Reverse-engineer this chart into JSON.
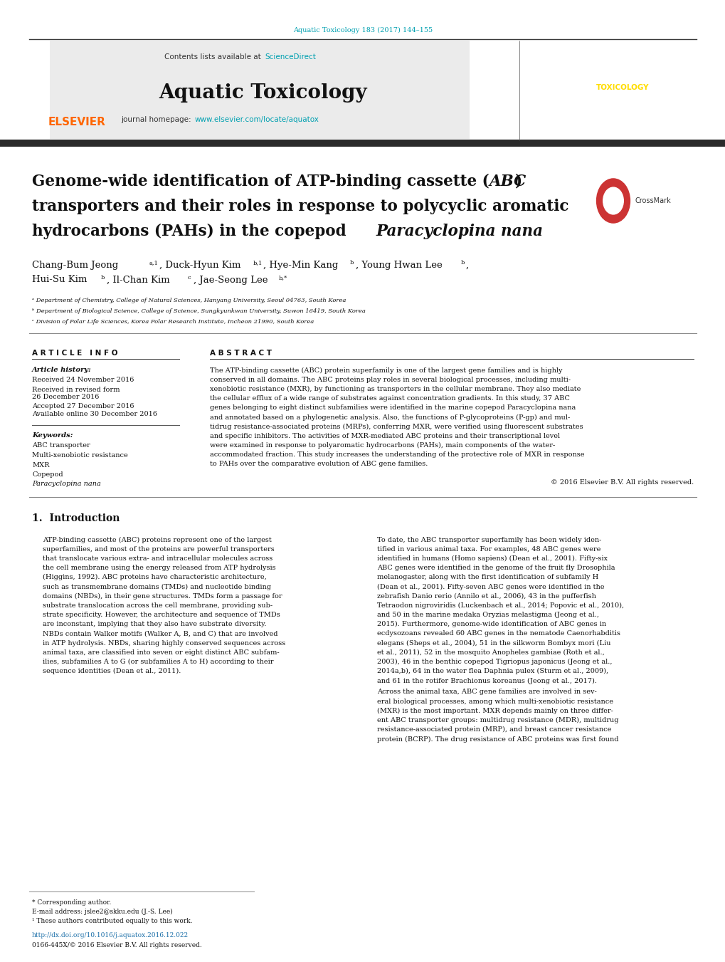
{
  "page_width": 10.2,
  "page_height": 13.51,
  "bg_color": "#ffffff",
  "top_citation": "Aquatic Toxicology 183 (2017) 144–155",
  "citation_color": "#00a0b0",
  "journal_name": "Aquatic Toxicology",
  "contents_text": "Contents lists available at ",
  "science_direct": "ScienceDirect",
  "journal_homepage_text": "journal homepage: ",
  "journal_url": "www.elsevier.com/locate/aquatox",
  "header_bg": "#e8e8e8",
  "elsevier_color": "#ff6600",
  "article_info_header": "A R T I C L E   I N F O",
  "abstract_header": "A B S T R A C T",
  "article_history_label": "Article history:",
  "received1": "Received 24 November 2016",
  "received2": "Received in revised form",
  "received2b": "26 December 2016",
  "accepted": "Accepted 27 December 2016",
  "available": "Available online 30 December 2016",
  "keywords_label": "Keywords:",
  "keywords": [
    "ABC transporter",
    "Multi-xenobiotic resistance",
    "MXR",
    "Copepod",
    "Paracyclopina nana"
  ],
  "copyright": "© 2016 Elsevier B.V. All rights reserved.",
  "intro_header": "1.  Introduction",
  "affil_a": "ᵃ Department of Chemistry, College of Natural Sciences, Hanyang University, Seoul 04763, South Korea",
  "affil_b": "ᵇ Department of Biological Science, College of Science, Sungkyunkwan University, Suwon 16419, South Korea",
  "affil_c": "ᶜ Division of Polar Life Sciences, Korea Polar Research Institute, Incheon 21990, South Korea",
  "footnote_corresponding": "* Corresponding author.",
  "footnote_email": "E-mail address: jslee2@skku.edu (J.-S. Lee)",
  "footnote_equal": "¹ These authors contributed equally to this work.",
  "doi": "http://dx.doi.org/10.1016/j.aquatox.2016.12.022",
  "issn": "0166-445X/© 2016 Elsevier B.V. All rights reserved.",
  "link_color": "#1a6ea8",
  "dark_line_color": "#3a3a3a",
  "separator_color": "#aaaaaa",
  "abstract_lines": [
    "The ATP-binding cassette (ABC) protein superfamily is one of the largest gene families and is highly",
    "conserved in all domains. The ABC proteins play roles in several biological processes, including multi-",
    "xenobiotic resistance (MXR), by functioning as transporters in the cellular membrane. They also mediate",
    "the cellular efflux of a wide range of substrates against concentration gradients. In this study, 37 ABC",
    "genes belonging to eight distinct subfamilies were identified in the marine copepod Paracyclopina nana",
    "and annotated based on a phylogenetic analysis. Also, the functions of P-glycoproteins (P-gp) and mul-",
    "tidrug resistance-associated proteins (MRPs), conferring MXR, were verified using fluorescent substrates",
    "and specific inhibitors. The activities of MXR-mediated ABC proteins and their transcriptional level",
    "were examined in response to polyaromatic hydrocarbons (PAHs), main components of the water-",
    "accommodated fraction. This study increases the understanding of the protective role of MXR in response",
    "to PAHs over the comparative evolution of ABC gene families."
  ],
  "intro_left_lines": [
    "ATP-binding cassette (ABC) proteins represent one of the largest",
    "superfamilies, and most of the proteins are powerful transporters",
    "that translocate various extra- and intracellular molecules across",
    "the cell membrane using the energy released from ATP hydrolysis",
    "(Higgins, 1992). ABC proteins have characteristic architecture,",
    "such as transmembrane domains (TMDs) and nucleotide binding",
    "domains (NBDs), in their gene structures. TMDs form a passage for",
    "substrate translocation across the cell membrane, providing sub-",
    "strate specificity. However, the architecture and sequence of TMDs",
    "are inconstant, implying that they also have substrate diversity.",
    "NBDs contain Walker motifs (Walker A, B, and C) that are involved",
    "in ATP hydrolysis. NBDs, sharing highly conserved sequences across",
    "animal taxa, are classified into seven or eight distinct ABC subfam-",
    "ilies, subfamilies A to G (or subfamilies A to H) according to their",
    "sequence identities (Dean et al., 2011)."
  ],
  "intro_right_lines": [
    "To date, the ABC transporter superfamily has been widely iden-",
    "tified in various animal taxa. For examples, 48 ABC genes were",
    "identified in humans (Homo sapiens) (Dean et al., 2001). Fifty-six",
    "ABC genes were identified in the genome of the fruit fly Drosophila",
    "melanogaster, along with the first identification of subfamily H",
    "(Dean et al., 2001). Fifty-seven ABC genes were identified in the",
    "zebrafish Danio rerio (Annilo et al., 2006), 43 in the pufferfish",
    "Tetraodon nigroviridis (Luckenbach et al., 2014; Popovic et al., 2010),",
    "and 50 in the marine medaka Oryzias melastigma (Jeong et al.,",
    "2015). Furthermore, genome-wide identification of ABC genes in",
    "ecdysozoans revealed 60 ABC genes in the nematode Caenorhabditis",
    "elegans (Sheps et al., 2004), 51 in the silkworm Bombyx mori (Liu",
    "et al., 2011), 52 in the mosquito Anopheles gambiae (Roth et al.,",
    "2003), 46 in the benthic copepod Tigriopus japonicus (Jeong et al.,",
    "2014a,b), 64 in the water flea Daphnia pulex (Sturm et al., 2009),",
    "and 61 in the rotifer Brachionus koreanus (Jeong et al., 2017)."
  ],
  "intro_right2_lines": [
    "Across the animal taxa, ABC gene families are involved in sev-",
    "eral biological processes, among which multi-xenobiotic resistance",
    "(MXR) is the most important. MXR depends mainly on three differ-",
    "ent ABC transporter groups: multidrug resistance (MDR), multidrug",
    "resistance-associated protein (MRP), and breast cancer resistance",
    "protein (BCRP). The drug resistance of ABC proteins was first found"
  ]
}
